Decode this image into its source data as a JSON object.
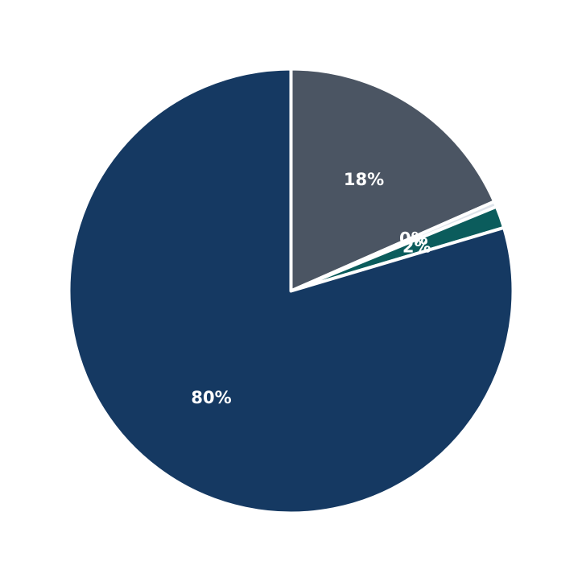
{
  "chart_data": {
    "type": "pie",
    "title": "",
    "start_angle_deg": 90,
    "direction": "clockwise",
    "slices": [
      {
        "value": 18.4,
        "label": "18%",
        "color": "#4b5563"
      },
      {
        "value": 0.4,
        "label": "0%",
        "color": "#dde3ea"
      },
      {
        "value": 1.6,
        "label": "2%",
        "color": "#0b5c5c"
      },
      {
        "value": 79.6,
        "label": "80%",
        "color": "#153962"
      }
    ],
    "legend": "none"
  }
}
